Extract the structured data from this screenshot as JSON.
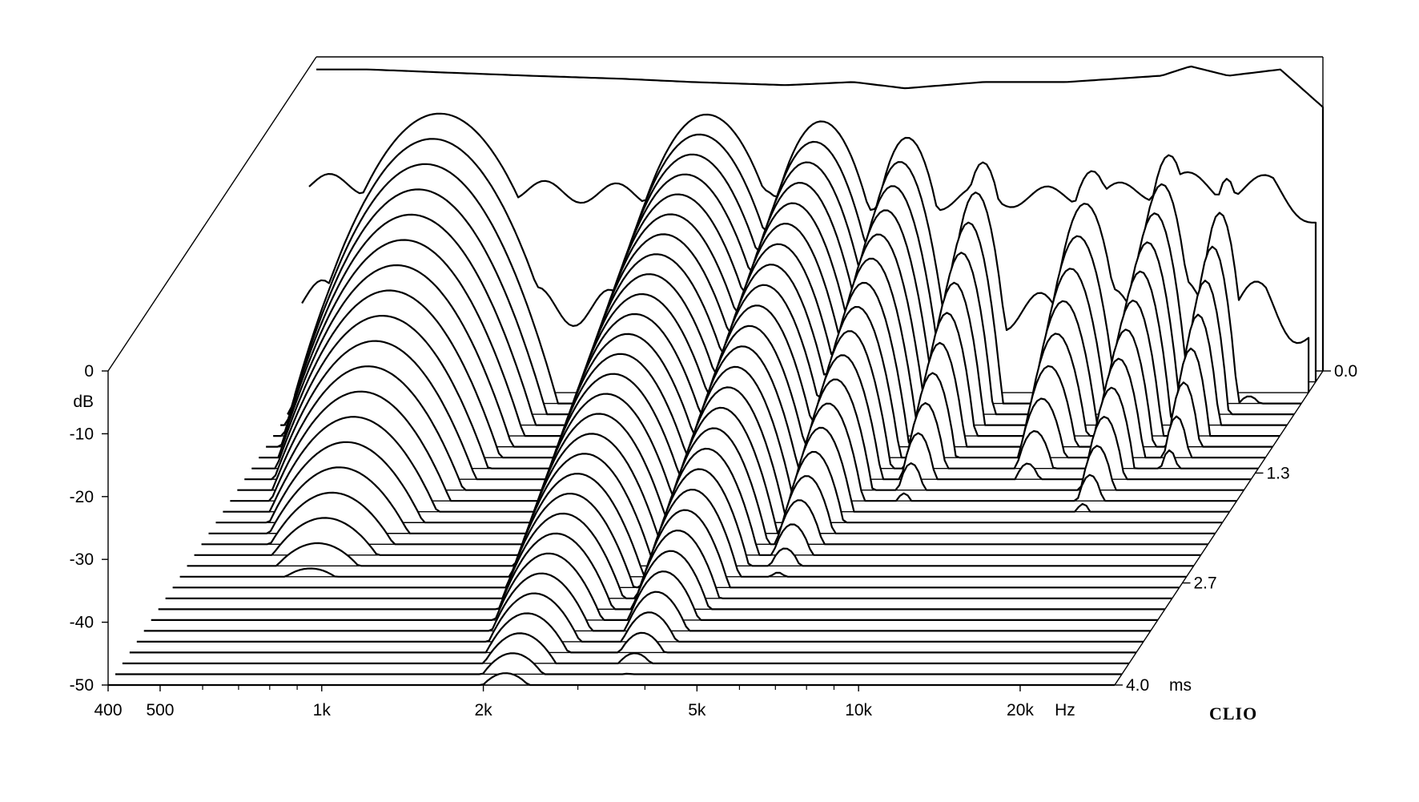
{
  "chart_data": {
    "type": "waterfall",
    "title": "",
    "brand": "CLIO",
    "x_axis": {
      "scale": "log",
      "range": [
        400,
        30000
      ],
      "unit_label": "Hz",
      "ticks": [
        {
          "value": 400,
          "label": "400"
        },
        {
          "value": 500,
          "label": "500"
        },
        {
          "value": 1000,
          "label": "1k"
        },
        {
          "value": 2000,
          "label": "2k"
        },
        {
          "value": 5000,
          "label": "5k"
        },
        {
          "value": 10000,
          "label": "10k"
        },
        {
          "value": 20000,
          "label": "20k"
        }
      ],
      "minor_ticks": [
        600,
        700,
        800,
        900,
        3000,
        4000,
        6000,
        7000,
        8000,
        9000
      ]
    },
    "y_axis": {
      "range": [
        -50,
        0
      ],
      "unit_label": "dB",
      "ticks": [
        {
          "value": 0,
          "label": "0"
        },
        {
          "value": -10,
          "label": "-10"
        },
        {
          "value": -20,
          "label": "-20"
        },
        {
          "value": -30,
          "label": "-30"
        },
        {
          "value": -40,
          "label": "-40"
        },
        {
          "value": -50,
          "label": "-50"
        }
      ]
    },
    "z_axis": {
      "range": [
        0,
        4.0
      ],
      "unit_label": "ms",
      "ticks": [
        {
          "value": 0.0,
          "label": "0.0"
        },
        {
          "value": 1.3,
          "label": "1.3"
        },
        {
          "value": 2.7,
          "label": "2.7"
        },
        {
          "value": 4.0,
          "label": "4.0"
        }
      ]
    },
    "slices": 30,
    "initial_response": [
      [
        400,
        -2
      ],
      [
        500,
        -2
      ],
      [
        700,
        -2.5
      ],
      [
        1000,
        -3
      ],
      [
        1500,
        -3.5
      ],
      [
        2000,
        -4
      ],
      [
        3000,
        -4.5
      ],
      [
        4000,
        -4
      ],
      [
        5000,
        -5
      ],
      [
        7000,
        -4
      ],
      [
        10000,
        -4
      ],
      [
        15000,
        -3
      ],
      [
        17000,
        -1.5
      ],
      [
        20000,
        -3
      ],
      [
        25000,
        -2
      ],
      [
        30000,
        -8
      ]
    ],
    "decay_modes": [
      {
        "f": 2200,
        "level": -6,
        "width": 0.13,
        "decay_ms": 3.8
      },
      {
        "f": 3600,
        "level": -7,
        "width": 0.1,
        "decay_ms": 3.6
      },
      {
        "f": 5200,
        "level": -9,
        "width": 0.07,
        "decay_ms": 2.6
      },
      {
        "f": 7200,
        "level": -12,
        "width": 0.05,
        "decay_ms": 1.8
      },
      {
        "f": 11500,
        "level": -13,
        "width": 0.06,
        "decay_ms": 1.6
      },
      {
        "f": 16000,
        "level": -11,
        "width": 0.05,
        "decay_ms": 1.9
      },
      {
        "f": 20500,
        "level": -14,
        "width": 0.04,
        "decay_ms": 1.5
      },
      {
        "f": 700,
        "level": -5,
        "width": 0.17,
        "decay_ms": 2.4
      }
    ]
  }
}
